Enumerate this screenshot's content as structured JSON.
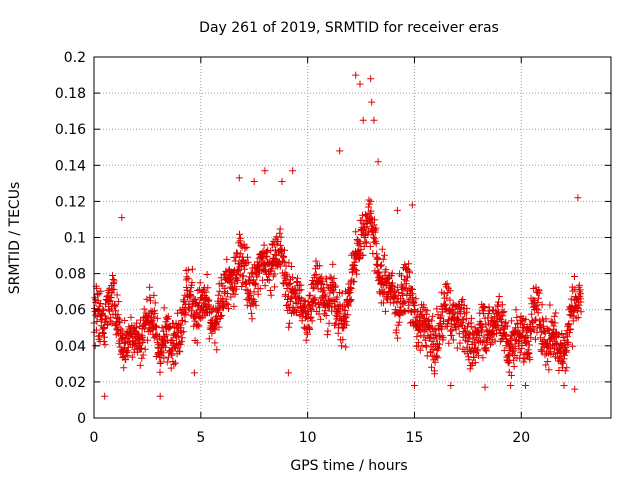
{
  "chart_data": {
    "type": "scatter",
    "title": "Day 261 of 2019, SRMTID for receiver eras",
    "xlabel": "GPS time / hours",
    "ylabel": "SRMTID / TECUs",
    "xlim": [
      0,
      24.2
    ],
    "ylim": [
      0,
      0.2
    ],
    "x_ticks": [
      0,
      5,
      10,
      15,
      20
    ],
    "x_tick_labels": [
      "0",
      "5",
      "10",
      "15",
      "20"
    ],
    "y_ticks": [
      0,
      0.02,
      0.04,
      0.06,
      0.08,
      0.1,
      0.12,
      0.14,
      0.16,
      0.18,
      0.2
    ],
    "y_tick_labels": [
      "0",
      "0.02",
      "0.04",
      "0.06",
      "0.08",
      "0.1",
      "0.12",
      "0.14",
      "0.16",
      "0.18",
      "0.2"
    ],
    "grid": true,
    "marker": "+",
    "color": "#e00000",
    "series": [
      {
        "name": "SRMTID",
        "data_span_hours": [
          0,
          22.8
        ],
        "trend": [
          [
            0.0,
            0.048
          ],
          [
            1.0,
            0.058
          ],
          [
            2.0,
            0.045
          ],
          [
            3.0,
            0.045
          ],
          [
            4.0,
            0.055
          ],
          [
            5.0,
            0.06
          ],
          [
            6.0,
            0.065
          ],
          [
            7.0,
            0.08
          ],
          [
            8.0,
            0.088
          ],
          [
            9.0,
            0.075
          ],
          [
            10.0,
            0.065
          ],
          [
            11.0,
            0.062
          ],
          [
            12.0,
            0.07
          ],
          [
            12.5,
            0.1
          ],
          [
            13.0,
            0.1
          ],
          [
            14.0,
            0.07
          ],
          [
            15.0,
            0.055
          ],
          [
            16.0,
            0.05
          ],
          [
            17.0,
            0.052
          ],
          [
            18.0,
            0.05
          ],
          [
            19.0,
            0.045
          ],
          [
            20.0,
            0.05
          ],
          [
            21.0,
            0.045
          ],
          [
            22.0,
            0.048
          ],
          [
            22.8,
            0.06
          ]
        ],
        "spread": 0.013,
        "notable_points": [
          [
            0.5,
            0.012
          ],
          [
            1.3,
            0.111
          ],
          [
            3.1,
            0.012
          ],
          [
            4.7,
            0.025
          ],
          [
            6.8,
            0.133
          ],
          [
            7.5,
            0.131
          ],
          [
            8.0,
            0.137
          ],
          [
            8.8,
            0.131
          ],
          [
            9.1,
            0.025
          ],
          [
            9.3,
            0.137
          ],
          [
            11.5,
            0.148
          ],
          [
            12.25,
            0.19
          ],
          [
            12.45,
            0.185
          ],
          [
            12.6,
            0.165
          ],
          [
            12.95,
            0.188
          ],
          [
            13.0,
            0.175
          ],
          [
            13.1,
            0.165
          ],
          [
            13.3,
            0.142
          ],
          [
            14.2,
            0.115
          ],
          [
            14.9,
            0.118
          ],
          [
            15.0,
            0.018
          ],
          [
            16.7,
            0.018
          ],
          [
            18.3,
            0.017
          ],
          [
            19.5,
            0.018
          ],
          [
            20.2,
            0.018
          ],
          [
            22.0,
            0.018
          ],
          [
            22.5,
            0.016
          ],
          [
            22.65,
            0.122
          ]
        ],
        "point_count": 2000
      }
    ]
  }
}
